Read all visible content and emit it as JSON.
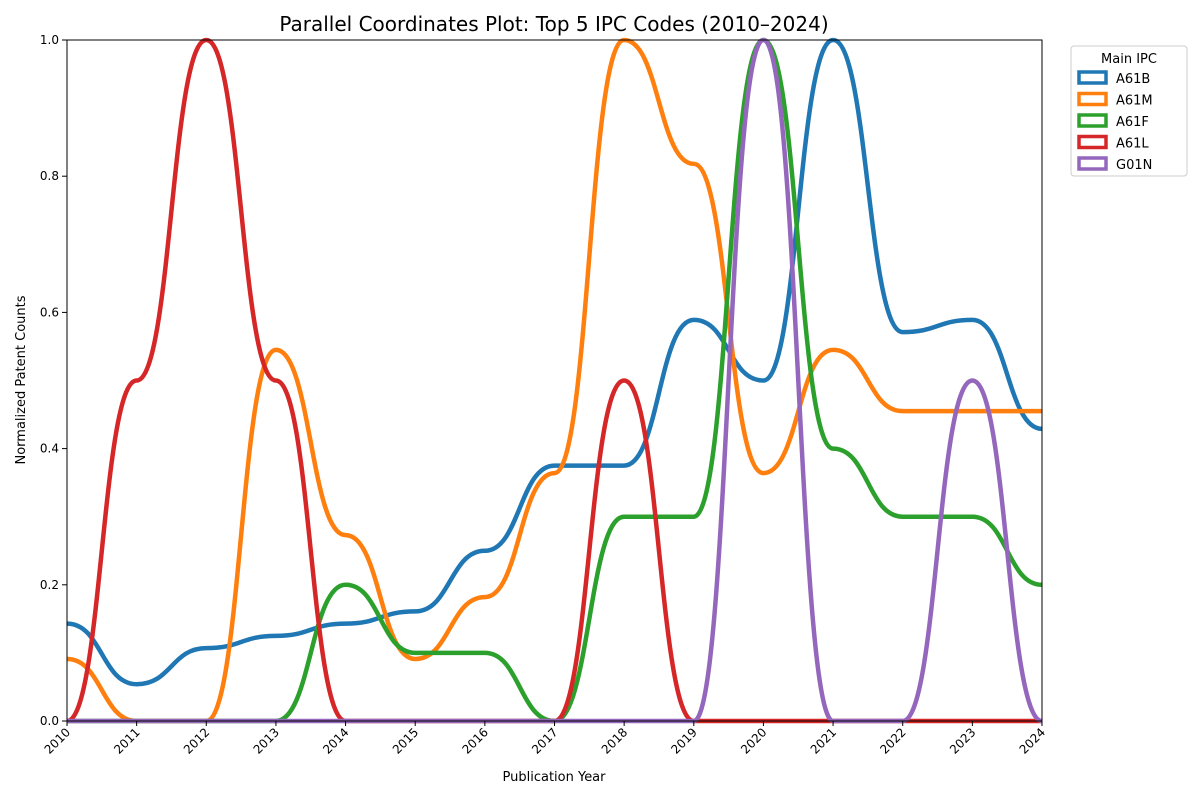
{
  "chart_data": {
    "type": "line",
    "title": "Parallel Coordinates Plot: Top 5 IPC Codes (2010–2024)",
    "xlabel": "Publication Year",
    "ylabel": "Normalized Patent Counts",
    "categories": [
      "2010",
      "2011",
      "2012",
      "2013",
      "2014",
      "2015",
      "2016",
      "2017",
      "2018",
      "2019",
      "2020",
      "2021",
      "2022",
      "2023",
      "2024"
    ],
    "ylim": [
      0,
      1
    ],
    "yticks": [
      "0.0",
      "0.2",
      "0.4",
      "0.6",
      "0.8",
      "1.0"
    ],
    "grid": false,
    "legend": {
      "title": "Main IPC",
      "placement": "outside top-right"
    },
    "series": [
      {
        "name": "A61B",
        "color": "#1f77b4",
        "values": [
          0.143,
          0.054,
          0.107,
          0.125,
          0.143,
          0.161,
          0.25,
          0.375,
          0.375,
          0.589,
          0.5,
          1.0,
          0.571,
          0.589,
          0.429
        ]
      },
      {
        "name": "A61M",
        "color": "#ff7f0e",
        "values": [
          0.091,
          0.0,
          0.0,
          0.545,
          0.273,
          0.091,
          0.182,
          0.364,
          1.0,
          0.818,
          0.364,
          0.545,
          0.455,
          0.455,
          0.455
        ]
      },
      {
        "name": "A61F",
        "color": "#2ca02c",
        "values": [
          0.0,
          0.0,
          0.0,
          0.0,
          0.2,
          0.1,
          0.1,
          0.0,
          0.3,
          0.3,
          1.0,
          0.4,
          0.3,
          0.3,
          0.2
        ]
      },
      {
        "name": "A61L",
        "color": "#d62728",
        "values": [
          0.0,
          0.5,
          1.0,
          0.5,
          0.0,
          0.0,
          0.0,
          0.0,
          0.5,
          0.0,
          0.0,
          0.0,
          0.0,
          0.0,
          0.0
        ]
      },
      {
        "name": "G01N",
        "color": "#9467bd",
        "values": [
          0.0,
          0.0,
          0.0,
          0.0,
          0.0,
          0.0,
          0.0,
          0.0,
          0.0,
          0.0,
          1.0,
          0.0,
          0.0,
          0.5,
          0.0
        ]
      }
    ]
  }
}
